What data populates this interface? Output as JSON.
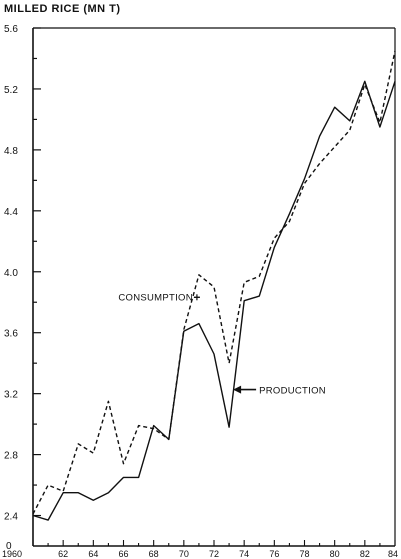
{
  "chart_data": {
    "type": "line",
    "ylabel": "MILLED RICE (MN T)",
    "ylim": [
      2.2,
      5.6
    ],
    "yticks": [
      2.4,
      2.8,
      3.2,
      3.6,
      4.0,
      4.4,
      4.8,
      5.2,
      5.6
    ],
    "ytick_labels": [
      "2.4",
      "2.8",
      "3.2",
      "3.6",
      "4.0",
      "4.4",
      "4.8",
      "5.2",
      "5.6"
    ],
    "y_axis_origin_label": "0",
    "xlim": [
      1960,
      1984
    ],
    "xticks": [
      1960,
      1962,
      1964,
      1966,
      1968,
      1970,
      1972,
      1974,
      1976,
      1978,
      1980,
      1982,
      1984
    ],
    "xtick_labels": [
      "1960",
      "62",
      "64",
      "66",
      "68",
      "70",
      "72",
      "74",
      "76",
      "78",
      "80",
      "82",
      "84"
    ],
    "x": [
      1960,
      1961,
      1962,
      1963,
      1964,
      1965,
      1966,
      1967,
      1968,
      1969,
      1970,
      1971,
      1972,
      1973,
      1974,
      1975,
      1976,
      1977,
      1978,
      1979,
      1980,
      1981,
      1982,
      1983,
      1984
    ],
    "series": [
      {
        "name": "CONSUMPTION",
        "style": "dashed",
        "values": [
          2.41,
          2.6,
          2.56,
          2.87,
          2.81,
          3.15,
          2.74,
          2.99,
          2.97,
          2.9,
          3.62,
          3.98,
          3.9,
          3.4,
          3.93,
          3.97,
          4.22,
          4.33,
          4.58,
          4.71,
          4.82,
          4.93,
          5.23,
          4.98,
          5.45
        ]
      },
      {
        "name": "PRODUCTION",
        "style": "solid",
        "values": [
          2.4,
          2.37,
          2.55,
          2.55,
          2.5,
          2.55,
          2.65,
          2.65,
          2.99,
          2.9,
          3.61,
          3.66,
          3.46,
          2.98,
          3.81,
          3.84,
          4.16,
          4.38,
          4.61,
          4.89,
          5.08,
          4.99,
          5.25,
          4.95,
          5.25
        ]
      }
    ],
    "annotations": [
      {
        "text": "CONSUMPTION",
        "series": "CONSUMPTION",
        "x": 1971,
        "y": 3.99
      },
      {
        "text": "PRODUCTION",
        "series": "PRODUCTION",
        "x": 1973.2,
        "y": 3.22
      }
    ]
  }
}
